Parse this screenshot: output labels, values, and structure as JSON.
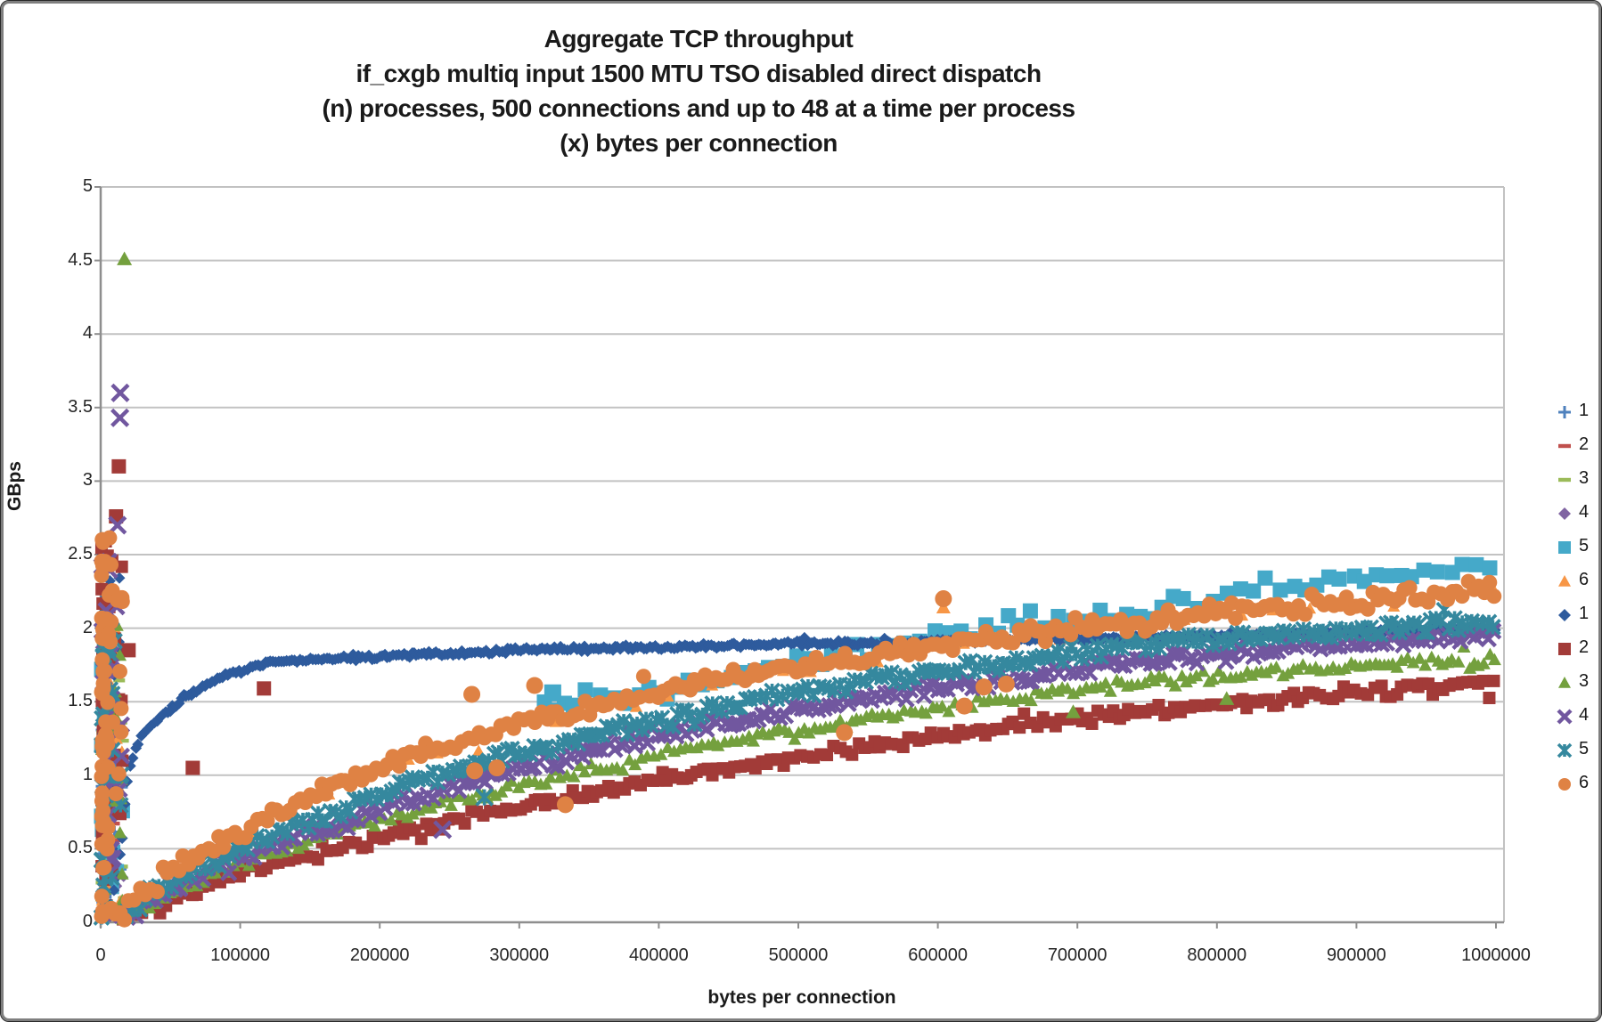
{
  "chart_data": {
    "type": "scatter",
    "title_lines": [
      "Aggregate TCP throughput",
      "if_cxgb multiq input 1500 MTU TSO disabled direct dispatch",
      "(n) processes, 500 connections and up to 48 at a time per process",
      "(x) bytes per connection"
    ],
    "xlabel": "bytes per connection",
    "ylabel": "GBps",
    "x_axis": {
      "min": 0,
      "max": 1000000,
      "tick_step": 100000,
      "tick_labels": [
        "0",
        "100000",
        "200000",
        "300000",
        "400000",
        "500000",
        "600000",
        "700000",
        "800000",
        "900000",
        "1000000"
      ]
    },
    "y_axis": {
      "min": 0,
      "max": 5,
      "tick_step": 0.5,
      "tick_labels": [
        "0",
        "0.5",
        "1",
        "1.5",
        "2",
        "2.5",
        "3",
        "3.5",
        "4",
        "4.5",
        "5"
      ]
    },
    "grid": "horizontal",
    "colors": {
      "grid": "#c2c2c2",
      "axis": "#8e8e8e",
      "text": "#1a1a1a"
    },
    "legend": {
      "position": "right",
      "entries": [
        {
          "label": "1",
          "marker": "plus",
          "color": "#4F81BD"
        },
        {
          "label": "2",
          "marker": "dash",
          "color": "#C0504D"
        },
        {
          "label": "3",
          "marker": "dash",
          "color": "#9BBB59"
        },
        {
          "label": "4",
          "marker": "diamond",
          "color": "#8064A2"
        },
        {
          "label": "5",
          "marker": "square",
          "color": "#45A9C9"
        },
        {
          "label": "6",
          "marker": "triangle",
          "color": "#F79646"
        },
        {
          "label": "1",
          "marker": "diamond",
          "color": "#2E5B9D"
        },
        {
          "label": "2",
          "marker": "square",
          "color": "#A23B38"
        },
        {
          "label": "3",
          "marker": "triangle",
          "color": "#74A03E"
        },
        {
          "label": "4",
          "marker": "x",
          "color": "#71579F"
        },
        {
          "label": "5",
          "marker": "xstar",
          "color": "#35889E"
        },
        {
          "label": "6",
          "marker": "circle",
          "color": "#DF8244"
        }
      ]
    },
    "series": [
      {
        "id": "p1-plus",
        "label": "1",
        "set": 1,
        "marker": "plus",
        "color": "#4F81BD",
        "size": 13,
        "cluster": {
          "x_max": 16000,
          "y_max": 1.92,
          "count": 28
        }
      },
      {
        "id": "p1-dash2",
        "label": "2",
        "set": 1,
        "marker": "dash",
        "color": "#C0504D",
        "size": 11,
        "cluster": {
          "x_max": 16000,
          "y_max": 1.85,
          "count": 22
        }
      },
      {
        "id": "p1-dash3",
        "label": "3",
        "set": 1,
        "marker": "dash",
        "color": "#9BBB59",
        "size": 13,
        "cluster": {
          "x_max": 16000,
          "y_max": 1.78,
          "count": 22
        }
      },
      {
        "id": "p1-diamond4",
        "label": "4",
        "set": 1,
        "marker": "diamond",
        "color": "#8064A2",
        "size": 11,
        "cluster": {
          "x_max": 16000,
          "y_max": 1.95,
          "count": 22
        }
      },
      {
        "id": "p1-square5",
        "label": "5",
        "set": 1,
        "marker": "square",
        "color": "#45A9C9",
        "size": 17,
        "cluster": {
          "x_max": 16000,
          "y_max": 1.72,
          "count": 16
        },
        "x_start": 318000,
        "step": 8800,
        "noise": 0.06,
        "trend": [
          [
            318000,
            1.45
          ],
          [
            380000,
            1.55
          ],
          [
            420000,
            1.6
          ],
          [
            470000,
            1.7
          ],
          [
            520000,
            1.8
          ],
          [
            570000,
            1.88
          ],
          [
            620000,
            1.96
          ],
          [
            670000,
            2.05
          ],
          [
            720000,
            2.1
          ],
          [
            770000,
            2.16
          ],
          [
            820000,
            2.25
          ],
          [
            870000,
            2.3
          ],
          [
            920000,
            2.35
          ],
          [
            1000000,
            2.4
          ]
        ],
        "outliers": [
          [
            324000,
            1.56
          ]
        ]
      },
      {
        "id": "p1-triangle6",
        "label": "6",
        "set": 1,
        "marker": "triangle",
        "color": "#F79646",
        "size": 14,
        "cluster": {
          "x_max": 16000,
          "y_max": 2.28,
          "count": 22
        },
        "x_start": 90000,
        "step": 26000,
        "noise": 0.04,
        "trend": [
          [
            90000,
            0.56
          ],
          [
            200000,
            1.03
          ],
          [
            300000,
            1.34
          ],
          [
            400000,
            1.55
          ],
          [
            500000,
            1.72
          ],
          [
            600000,
            1.87
          ],
          [
            700000,
            1.99
          ],
          [
            800000,
            2.09
          ],
          [
            900000,
            2.17
          ],
          [
            1000000,
            2.25
          ]
        ],
        "outliers": [
          [
            604000,
            2.14
          ]
        ]
      },
      {
        "id": "p2-diamond1",
        "label": "1",
        "set": 2,
        "marker": "diamond",
        "color": "#2E5B9D",
        "size": 13,
        "cluster": {
          "x_max": 15000,
          "y_max": 2.7,
          "count": 45
        },
        "x_start": 3500,
        "step": 1900,
        "noise": 0.013,
        "trend": [
          [
            3500,
            0.04
          ],
          [
            8000,
            0.15
          ],
          [
            12000,
            0.32
          ],
          [
            15000,
            0.52
          ],
          [
            17000,
            0.78
          ],
          [
            20000,
            1.02
          ],
          [
            25000,
            1.18
          ],
          [
            30000,
            1.28
          ],
          [
            38000,
            1.35
          ],
          [
            50000,
            1.45
          ],
          [
            60000,
            1.52
          ],
          [
            70000,
            1.58
          ],
          [
            80000,
            1.63
          ],
          [
            92000,
            1.69
          ],
          [
            100000,
            1.71
          ],
          [
            110000,
            1.74
          ],
          [
            125000,
            1.77
          ],
          [
            140000,
            1.78
          ],
          [
            160000,
            1.79
          ],
          [
            185000,
            1.8
          ],
          [
            210000,
            1.81
          ],
          [
            235000,
            1.83
          ],
          [
            265000,
            1.83
          ],
          [
            300000,
            1.85
          ],
          [
            350000,
            1.86
          ],
          [
            400000,
            1.87
          ],
          [
            450000,
            1.88
          ],
          [
            500000,
            1.895
          ],
          [
            560000,
            1.9
          ],
          [
            620000,
            1.915
          ],
          [
            680000,
            1.925
          ],
          [
            740000,
            1.935
          ],
          [
            800000,
            1.95
          ],
          [
            860000,
            1.96
          ],
          [
            920000,
            1.98
          ],
          [
            1000000,
            2.0
          ]
        ],
        "outliers": []
      },
      {
        "id": "p2-square2",
        "label": "2",
        "set": 2,
        "marker": "square",
        "color": "#A23B38",
        "size": 14,
        "cluster": {
          "x_max": 15000,
          "y_max": 2.77,
          "count": 40
        },
        "x_start": 16000,
        "step": 3900,
        "noise": 0.032,
        "trend": [
          [
            16000,
            0.02
          ],
          [
            50000,
            0.16
          ],
          [
            100000,
            0.33
          ],
          [
            150000,
            0.46
          ],
          [
            200000,
            0.58
          ],
          [
            250000,
            0.69
          ],
          [
            300000,
            0.79
          ],
          [
            350000,
            0.88
          ],
          [
            400000,
            0.97
          ],
          [
            450000,
            1.05
          ],
          [
            500000,
            1.12
          ],
          [
            550000,
            1.19
          ],
          [
            600000,
            1.26
          ],
          [
            650000,
            1.32
          ],
          [
            700000,
            1.38
          ],
          [
            750000,
            1.43
          ],
          [
            800000,
            1.48
          ],
          [
            850000,
            1.52
          ],
          [
            900000,
            1.56
          ],
          [
            950000,
            1.6
          ],
          [
            1000000,
            1.63
          ]
        ],
        "outliers": [
          [
            13000,
            3.1
          ],
          [
            11000,
            2.76
          ],
          [
            20000,
            1.85
          ],
          [
            66000,
            1.05
          ],
          [
            117000,
            1.59
          ]
        ]
      },
      {
        "id": "p2-triangle3",
        "label": "3",
        "set": 2,
        "marker": "triangle",
        "color": "#74A03E",
        "size": 15,
        "cluster": {
          "x_max": 15000,
          "y_max": 2.08,
          "count": 30
        },
        "x_start": 16000,
        "step": 3900,
        "noise": 0.03,
        "trend": [
          [
            16000,
            0.03
          ],
          [
            50000,
            0.2
          ],
          [
            100000,
            0.4
          ],
          [
            150000,
            0.56
          ],
          [
            200000,
            0.7
          ],
          [
            250000,
            0.82
          ],
          [
            300000,
            0.94
          ],
          [
            350000,
            1.04
          ],
          [
            400000,
            1.14
          ],
          [
            450000,
            1.23
          ],
          [
            500000,
            1.31
          ],
          [
            550000,
            1.39
          ],
          [
            600000,
            1.46
          ],
          [
            650000,
            1.52
          ],
          [
            700000,
            1.58
          ],
          [
            750000,
            1.63
          ],
          [
            800000,
            1.67
          ],
          [
            850000,
            1.71
          ],
          [
            900000,
            1.74
          ],
          [
            950000,
            1.77
          ],
          [
            1000000,
            1.79
          ]
        ],
        "outliers": [
          [
            17000,
            4.51
          ],
          [
            697000,
            1.43
          ],
          [
            807000,
            1.52
          ]
        ]
      },
      {
        "id": "p2-x4",
        "label": "4",
        "set": 2,
        "marker": "x",
        "color": "#71579F",
        "size": 16,
        "cluster": {
          "x_max": 15000,
          "y_max": 2.72,
          "count": 35
        },
        "x_start": 15000,
        "step": 3400,
        "noise": 0.038,
        "trend": [
          [
            15000,
            0.03
          ],
          [
            50000,
            0.24
          ],
          [
            100000,
            0.45
          ],
          [
            150000,
            0.62
          ],
          [
            200000,
            0.78
          ],
          [
            250000,
            0.92
          ],
          [
            300000,
            1.05
          ],
          [
            350000,
            1.17
          ],
          [
            400000,
            1.27
          ],
          [
            450000,
            1.37
          ],
          [
            500000,
            1.45
          ],
          [
            550000,
            1.53
          ],
          [
            600000,
            1.6
          ],
          [
            650000,
            1.66
          ],
          [
            700000,
            1.72
          ],
          [
            750000,
            1.77
          ],
          [
            800000,
            1.82
          ],
          [
            850000,
            1.86
          ],
          [
            900000,
            1.9
          ],
          [
            950000,
            1.93
          ],
          [
            1000000,
            1.96
          ]
        ],
        "outliers": [
          [
            14000,
            3.6
          ],
          [
            13800,
            3.43
          ],
          [
            12000,
            2.7
          ],
          [
            245000,
            0.63
          ]
        ]
      },
      {
        "id": "p2-xstar5",
        "label": "5",
        "set": 2,
        "marker": "xstar",
        "color": "#35889E",
        "size": 16,
        "cluster": {
          "x_max": 15000,
          "y_max": 2.02,
          "count": 32
        },
        "x_start": 15000,
        "step": 3400,
        "noise": 0.042,
        "trend": [
          [
            15000,
            0.04
          ],
          [
            50000,
            0.27
          ],
          [
            100000,
            0.5
          ],
          [
            150000,
            0.69
          ],
          [
            200000,
            0.87
          ],
          [
            250000,
            1.02
          ],
          [
            300000,
            1.15
          ],
          [
            350000,
            1.27
          ],
          [
            400000,
            1.38
          ],
          [
            450000,
            1.48
          ],
          [
            500000,
            1.56
          ],
          [
            550000,
            1.64
          ],
          [
            600000,
            1.71
          ],
          [
            650000,
            1.77
          ],
          [
            700000,
            1.83
          ],
          [
            750000,
            1.88
          ],
          [
            800000,
            1.92
          ],
          [
            850000,
            1.96
          ],
          [
            900000,
            1.99
          ],
          [
            950000,
            2.02
          ],
          [
            1000000,
            2.05
          ]
        ],
        "outliers": [
          [
            275000,
            0.85
          ]
        ]
      },
      {
        "id": "p2-circle6",
        "label": "6",
        "set": 2,
        "marker": "circle",
        "color": "#DF8244",
        "size": 17,
        "cluster": {
          "x_max": 15000,
          "y_max": 2.62,
          "count": 65
        },
        "x_start": 14000,
        "step": 3800,
        "noise": 0.048,
        "trend": [
          [
            14000,
            0.05
          ],
          [
            50000,
            0.35
          ],
          [
            100000,
            0.62
          ],
          [
            150000,
            0.85
          ],
          [
            200000,
            1.05
          ],
          [
            250000,
            1.22
          ],
          [
            300000,
            1.36
          ],
          [
            350000,
            1.47
          ],
          [
            400000,
            1.57
          ],
          [
            450000,
            1.66
          ],
          [
            500000,
            1.74
          ],
          [
            550000,
            1.82
          ],
          [
            600000,
            1.89
          ],
          [
            650000,
            1.95
          ],
          [
            700000,
            2.01
          ],
          [
            750000,
            2.06
          ],
          [
            800000,
            2.11
          ],
          [
            850000,
            2.15
          ],
          [
            900000,
            2.19
          ],
          [
            950000,
            2.23
          ],
          [
            1000000,
            2.27
          ]
        ],
        "outliers": [
          [
            604000,
            2.2
          ],
          [
            533000,
            1.29
          ],
          [
            619000,
            1.47
          ],
          [
            633000,
            1.6
          ],
          [
            649000,
            1.62
          ],
          [
            266000,
            1.55
          ],
          [
            311000,
            1.61
          ],
          [
            268000,
            1.03
          ],
          [
            284000,
            1.05
          ],
          [
            333000,
            0.8
          ]
        ]
      }
    ]
  }
}
